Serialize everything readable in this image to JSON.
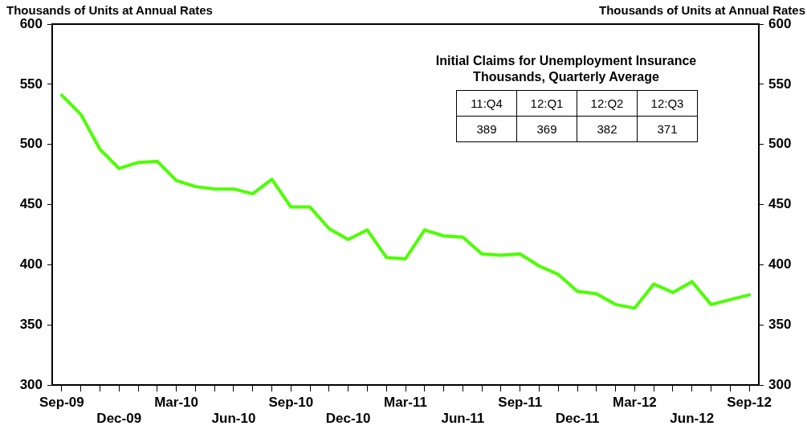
{
  "chart_data": {
    "type": "line",
    "ylabel": "Thousands of Units at Annual Rates",
    "y2label": "Thousands of Units at Annual Rates",
    "categories": [
      "Sep-09",
      null,
      null,
      "Dec-09",
      null,
      null,
      "Mar-10",
      null,
      null,
      "Jun-10",
      null,
      null,
      "Sep-10",
      null,
      null,
      "Dec-10",
      null,
      null,
      "Mar-11",
      null,
      null,
      "Jun-11",
      null,
      null,
      "Sep-11",
      null,
      null,
      "Dec-11",
      null,
      null,
      "Mar-12",
      null,
      null,
      "Jun-12",
      null,
      null,
      "Sep-12"
    ],
    "series": [
      {
        "color": "#4cff00",
        "values": [
          541,
          525,
          496,
          480,
          485,
          486,
          470,
          465,
          463,
          463,
          459,
          471,
          448,
          448,
          430,
          421,
          429,
          406,
          405,
          429,
          424,
          423,
          409,
          408,
          409,
          399,
          392,
          378,
          376,
          367,
          364,
          384,
          377,
          386,
          367,
          371,
          375
        ]
      }
    ],
    "ylim": [
      300,
      600
    ],
    "yticks": [
      300,
      350,
      400,
      450,
      500,
      550,
      600
    ],
    "y2lim": [
      300,
      600
    ],
    "y2ticks": [
      300,
      350,
      400,
      450,
      500,
      550,
      600
    ],
    "grid": false,
    "legend": false,
    "marker": "none",
    "line_style": "solid",
    "annotations": [
      "Initial Claims for Unemployment Insurance",
      "Thousands, Quarterly Average",
      "11:Q4",
      "12:Q1",
      "12:Q2",
      "12:Q3",
      "389",
      "369",
      "382",
      "371"
    ]
  }
}
